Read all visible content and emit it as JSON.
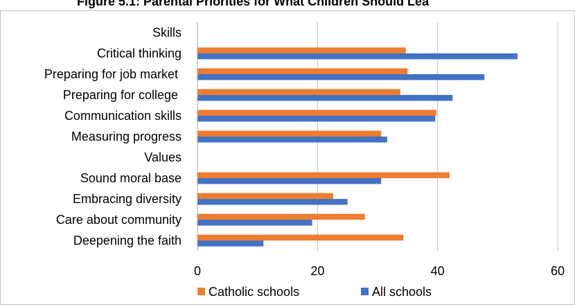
{
  "chart_data": {
    "type": "bar",
    "orientation": "horizontal",
    "title": "Figure 5.1: Parental Priorities for What Children Should Lea",
    "categories": [
      "Skills",
      "Critical thinking",
      "Preparing for job market ",
      "Preparing for college ",
      "Communication skills",
      "Measuring progress",
      "Values",
      "Sound moral base",
      "Embracing diversity",
      "Care about community",
      "Deepening the faith"
    ],
    "series": [
      {
        "name": "Catholic schools",
        "color": "#ED7D31",
        "values": [
          null,
          34.7,
          35.0,
          33.8,
          39.8,
          30.6,
          null,
          42.0,
          22.6,
          27.9,
          34.3
        ]
      },
      {
        "name": "All schools",
        "color": "#4472C4",
        "values": [
          null,
          53.3,
          47.8,
          42.5,
          39.6,
          31.6,
          null,
          30.6,
          25.0,
          19.1,
          11.0
        ]
      }
    ],
    "xlim": [
      0,
      60
    ],
    "xticks": [
      0,
      20,
      40,
      60
    ],
    "grid": true,
    "legend_position": "bottom"
  }
}
